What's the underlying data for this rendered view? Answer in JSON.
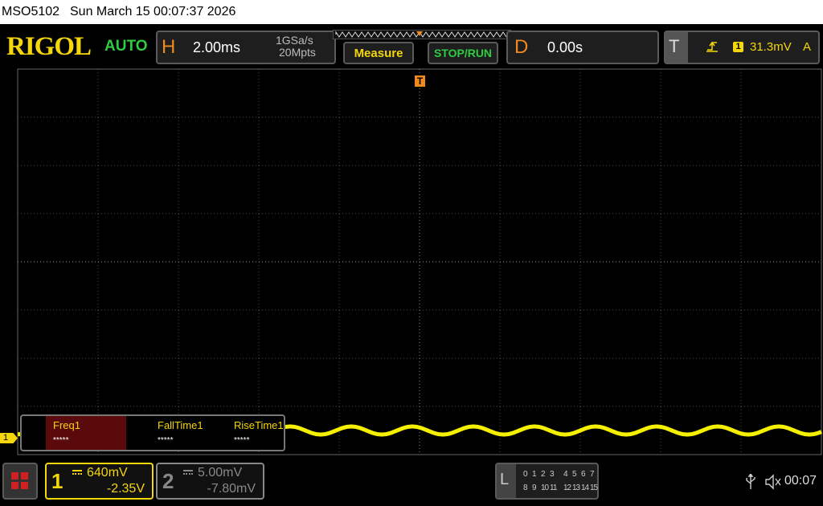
{
  "status_bar": {
    "model": "MSO5102",
    "datetime": "Sun March 15 00:07:37 2026"
  },
  "header": {
    "brand": "RIGOL",
    "mode": "AUTO",
    "horizontal": {
      "label": "H",
      "timebase": "2.00ms",
      "sample_rate": "1GSa/s",
      "memory_depth": "20Mpts"
    },
    "buttons": [
      "Measure",
      "STOP/RUN"
    ],
    "delay": {
      "label": "D",
      "value": "0.00s"
    },
    "trigger": {
      "label": "T",
      "source": "1",
      "level": "31.3mV",
      "coupling": "A"
    }
  },
  "screen": {
    "trigger_marker": "T",
    "channel_marker": "1"
  },
  "measurements": [
    {
      "name": "Freq1",
      "value": "*****"
    },
    {
      "name": "FallTime1",
      "value": "*****"
    },
    {
      "name": "RiseTime1",
      "value": "*****"
    }
  ],
  "channels": [
    {
      "number": "1",
      "scale": "640mV",
      "offset": "-2.35V"
    },
    {
      "number": "2",
      "scale": "5.00mV",
      "offset": "-7.80mV"
    }
  ],
  "logic": {
    "label": "L",
    "bits": [
      "0",
      "1",
      "2",
      "3",
      "4",
      "5",
      "6",
      "7",
      "8",
      "9",
      "10",
      "11",
      "12",
      "13",
      "14",
      "15"
    ]
  },
  "status": {
    "time": "00:07"
  }
}
